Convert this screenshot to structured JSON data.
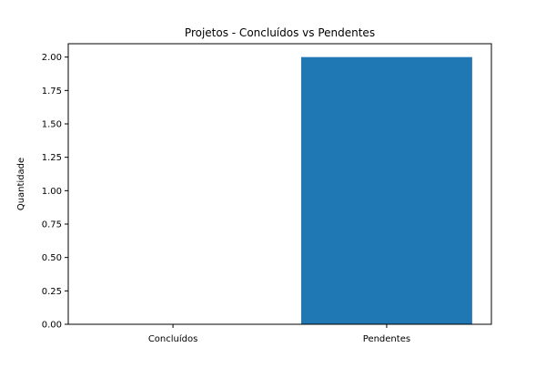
{
  "chart_data": {
    "type": "bar",
    "title": "Projetos - Concluídos vs Pendentes",
    "xlabel": "",
    "ylabel": "Quantidade",
    "categories": [
      "Concluídos",
      "Pendentes"
    ],
    "values": [
      0,
      2
    ],
    "ylim": [
      0,
      2.1
    ],
    "yticks": [
      0.0,
      0.25,
      0.5,
      0.75,
      1.0,
      1.25,
      1.5,
      1.75,
      2.0
    ],
    "ytick_labels": [
      "0.00",
      "0.25",
      "0.50",
      "0.75",
      "1.00",
      "1.25",
      "1.50",
      "1.75",
      "2.00"
    ],
    "bar_color": "#1f77b4",
    "grid": false,
    "legend": "none"
  }
}
